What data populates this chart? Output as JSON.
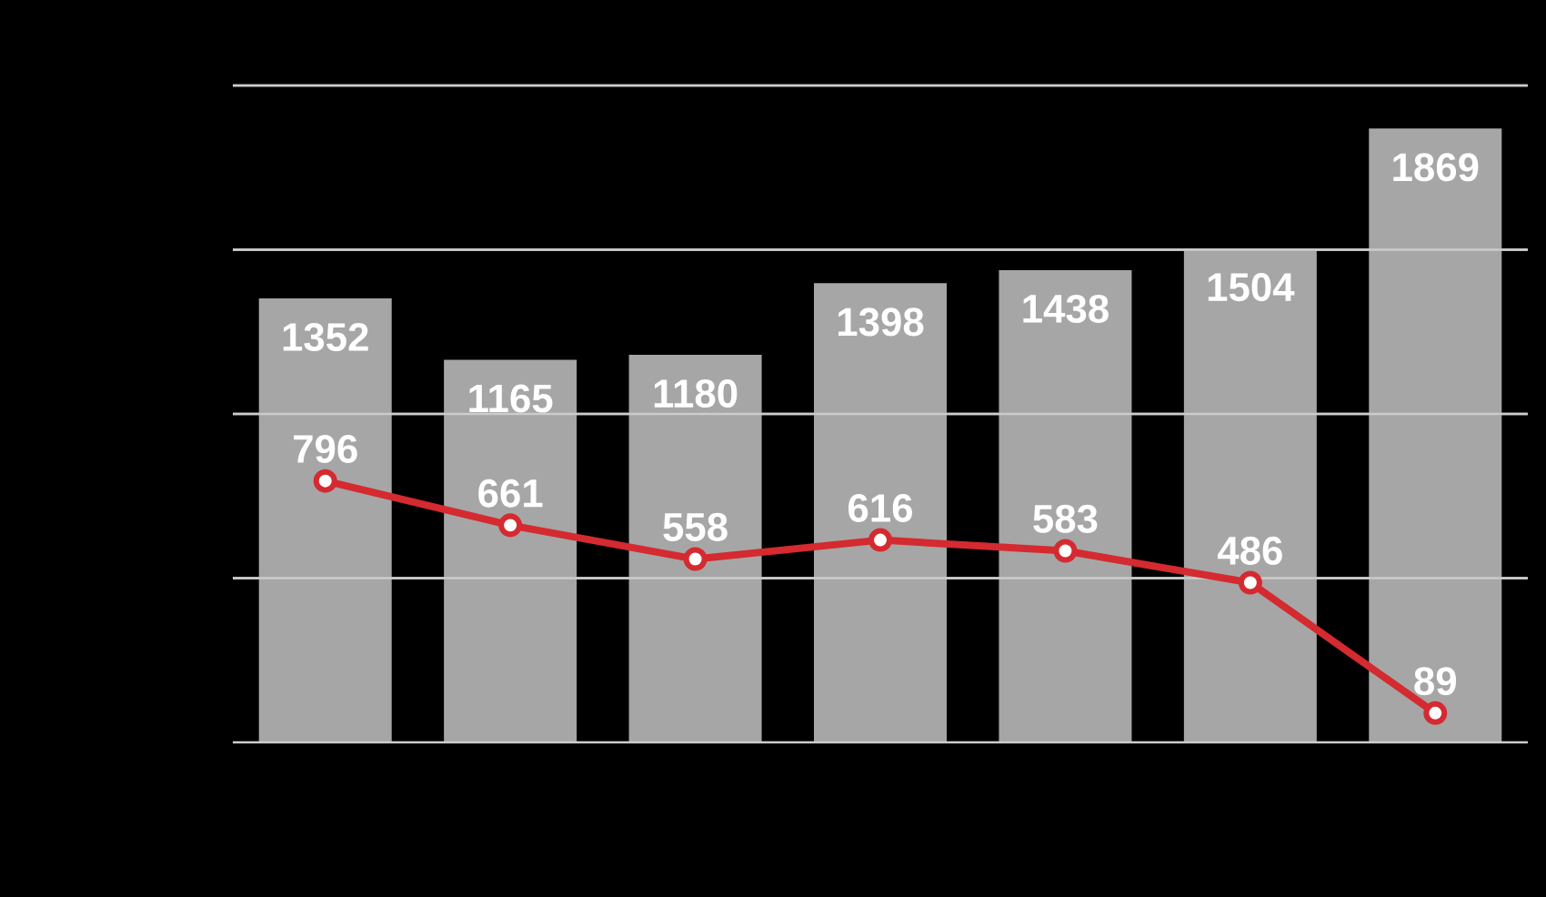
{
  "chart_data": [
    {
      "type": "bar",
      "categories": [
        null,
        null,
        null,
        null,
        null,
        null,
        null
      ],
      "color": "#a6a6a6",
      "values": [
        1352,
        1165,
        1180,
        1398,
        1438,
        1504,
        1869
      ],
      "ylim": [
        0,
        2000
      ],
      "yticks": [
        {
          "value": 500,
          "label": null
        },
        {
          "value": 1000,
          "label": null
        },
        {
          "value": 1500,
          "label": null
        },
        {
          "value": 2000,
          "label": null
        }
      ],
      "grid": "y",
      "tick_labels": false,
      "data_labels": true
    },
    {
      "type": "line",
      "categories": [
        null,
        null,
        null,
        null,
        null,
        null,
        null
      ],
      "color": "#d42a30",
      "values": [
        796,
        661,
        558,
        616,
        583,
        486,
        89
      ],
      "ylim": [
        0,
        2000
      ],
      "yticks": [
        {
          "value": 0,
          "label": null
        },
        {
          "value": 500,
          "label": null
        },
        {
          "value": 1000,
          "label": null
        },
        {
          "value": 1500,
          "label": null
        },
        {
          "value": 2000,
          "label": null
        }
      ],
      "grid": "y",
      "marker": "circle",
      "tick_labels": false,
      "data_labels": true
    }
  ]
}
